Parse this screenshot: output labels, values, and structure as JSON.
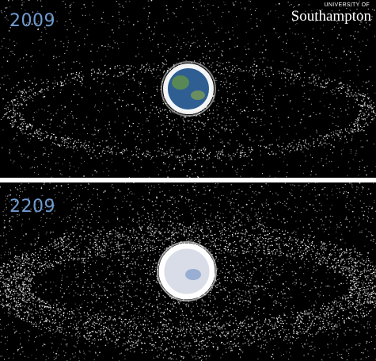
{
  "panels": [
    {
      "year": "2009"
    },
    {
      "year": "2209"
    }
  ],
  "logo": {
    "line1": "UNIVERSITY OF",
    "line2": "Southampton"
  },
  "colors": {
    "year_label": "#6f9ad1",
    "background": "#000000",
    "debris": "#ffffff",
    "earth_blue": "#3d6fa8",
    "earth_green": "#5f8f4a"
  }
}
